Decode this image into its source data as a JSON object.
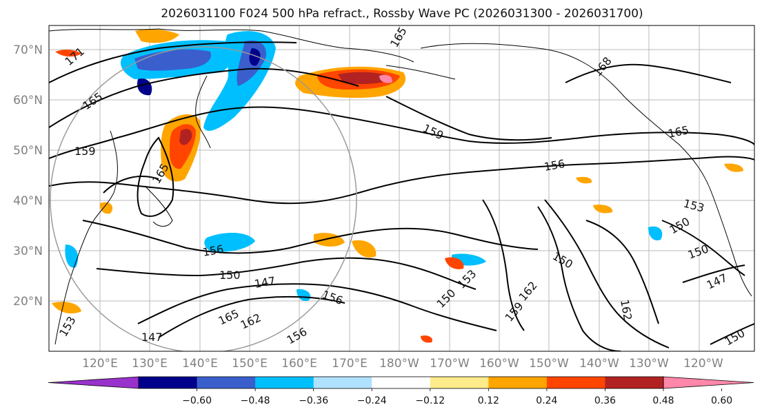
{
  "title": "2026031100 F024 500 hPa refract., Rossby Wave PC (2026031300 - 2026031700)",
  "latitude_labels": [
    "70°N",
    "60°N",
    "50°N",
    "40°N",
    "30°N",
    "20°N"
  ],
  "longitude_labels": [
    "120°E",
    "130°E",
    "140°E",
    "150°E",
    "160°E",
    "170°E",
    "180°W",
    "170°W",
    "160°W",
    "150°W",
    "140°W",
    "130°W",
    "120°W"
  ],
  "colorbar": {
    "ticks": [
      "−0.60",
      "−0.48",
      "−0.36",
      "−0.24",
      "−0.12",
      "0.12",
      "0.24",
      "0.36",
      "0.48",
      "0.60"
    ],
    "colors": [
      "#9932cc",
      "#00008b",
      "#3a5fcd",
      "#00bfff",
      "#b0e2ff",
      "#ffffff",
      "#ffeb8a",
      "#ffa500",
      "#ff4500",
      "#b22222",
      "#ff88aa"
    ]
  },
  "contour_labels": [
    "171",
    "165",
    "159",
    "168",
    "165",
    "159",
    "156",
    "153",
    "150",
    "150",
    "150",
    "156",
    "147",
    "150",
    "150",
    "153",
    "162",
    "159",
    "162",
    "165",
    "156",
    "147",
    "153",
    "156",
    "162",
    "150",
    "165",
    "165",
    "147"
  ]
}
